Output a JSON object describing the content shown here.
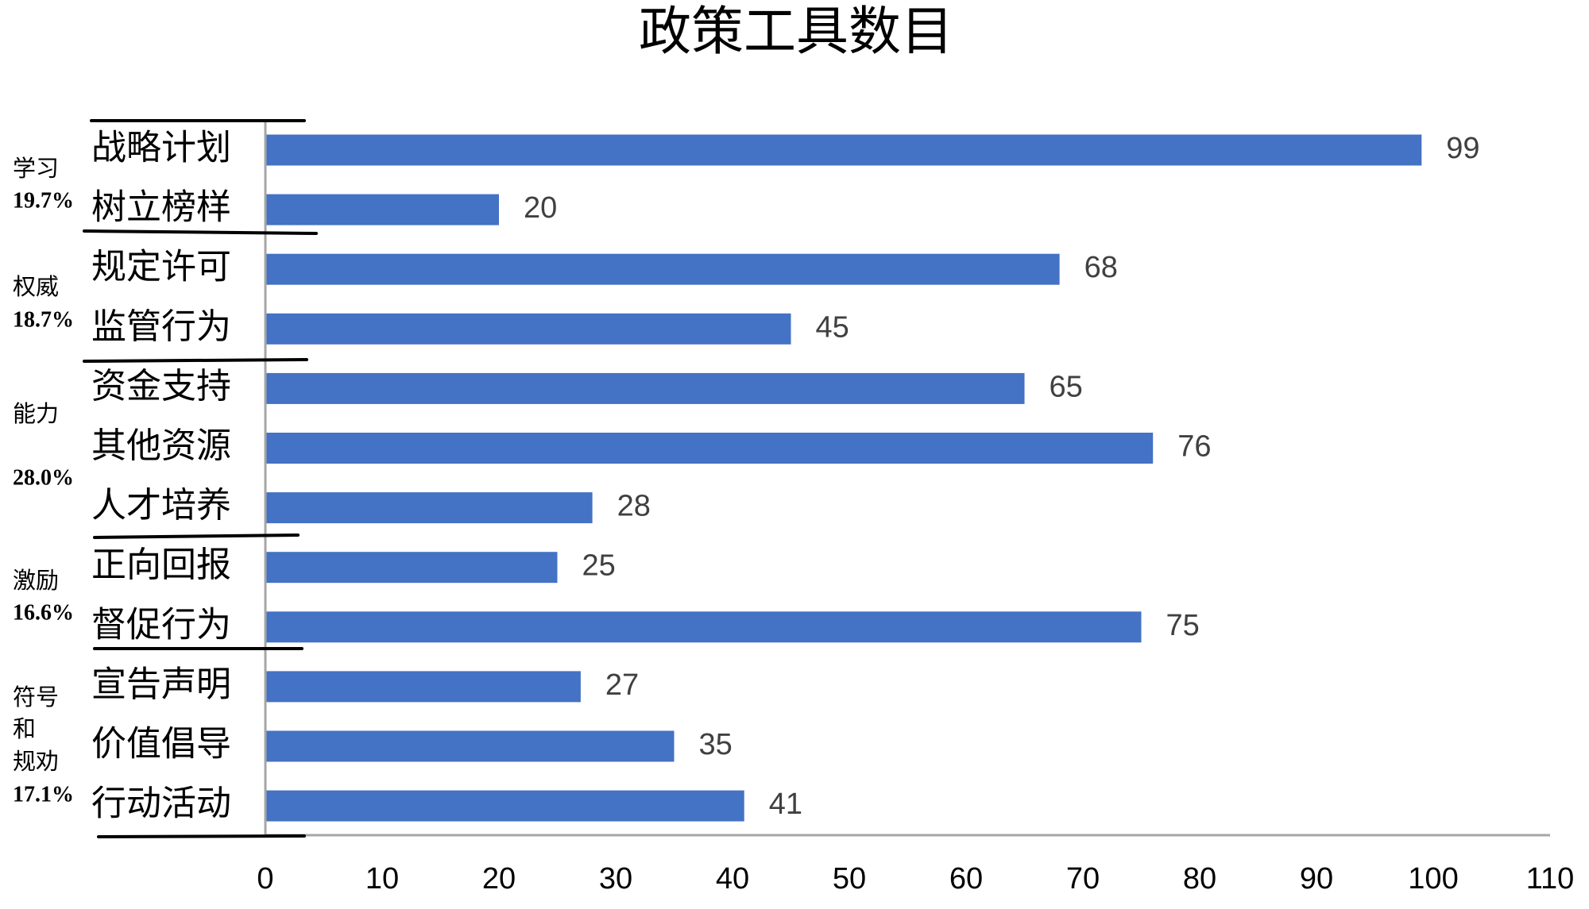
{
  "chart_data": {
    "type": "bar",
    "orientation": "horizontal",
    "title": "政策工具数目",
    "categories": [
      "战略计划",
      "树立榜样",
      "规定许可",
      "监管行为",
      "资金支持",
      "其他资源",
      "人才培养",
      "正向回报",
      "督促行为",
      "宣告声明",
      "价值倡导",
      "行动活动"
    ],
    "values": [
      99,
      20,
      68,
      45,
      65,
      76,
      28,
      25,
      75,
      27,
      35,
      41
    ],
    "xlim": [
      0,
      110
    ],
    "xticks": [
      0,
      10,
      20,
      30,
      40,
      50,
      60,
      70,
      80,
      90,
      100,
      110
    ],
    "data_labels": true,
    "grid": false,
    "legend": "none",
    "bar_color": "#4472C4",
    "groups": [
      {
        "label_lines": [
          "学习"
        ],
        "share": "19.7%",
        "rows": [
          0,
          1
        ]
      },
      {
        "label_lines": [
          "权威"
        ],
        "share": "18.7%",
        "rows": [
          2,
          3
        ]
      },
      {
        "label_lines": [
          "能力"
        ],
        "share": "28.0%",
        "rows": [
          4,
          6
        ]
      },
      {
        "label_lines": [
          "激励"
        ],
        "share": "16.6%",
        "rows": [
          7,
          8
        ]
      },
      {
        "label_lines": [
          "符号",
          "和",
          "规劝"
        ],
        "share": "17.1%",
        "rows": [
          9,
          11
        ]
      }
    ]
  }
}
